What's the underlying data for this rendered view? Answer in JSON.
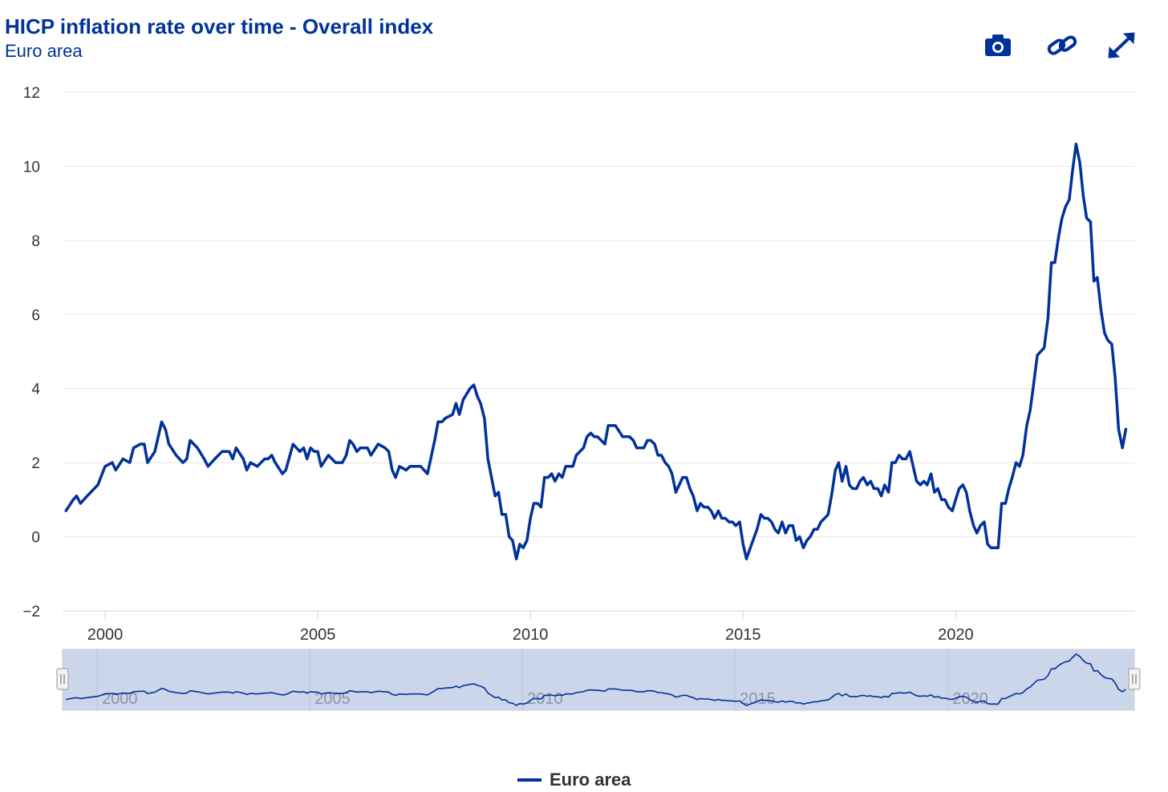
{
  "header": {
    "title": "HICP inflation rate over time - Overall index",
    "subtitle": "Euro area"
  },
  "toolbar": {
    "download_icon": "camera-icon",
    "share_icon": "link-icon",
    "fullscreen_icon": "expand-icon"
  },
  "colors": {
    "series": "#003299",
    "navigator_fill": "#ccd6eb",
    "grid": "#e6e6e6"
  },
  "chart_data": {
    "type": "line",
    "title": "HICP inflation rate over time - Overall index",
    "subtitle": "Euro area",
    "xlabel": "",
    "ylabel": "",
    "xlim": [
      1999.0,
      2024.2
    ],
    "ylim": [
      -2,
      12
    ],
    "yticks": [
      -2,
      0,
      2,
      4,
      6,
      8,
      10,
      12
    ],
    "xticks": [
      2000,
      2005,
      2010,
      2015,
      2020
    ],
    "grid": true,
    "legend_position": "bottom-center",
    "navigator": true,
    "series": [
      {
        "name": "Euro area",
        "points": [
          [
            1999.08,
            0.7
          ],
          [
            1999.25,
            1.0
          ],
          [
            1999.33,
            1.1
          ],
          [
            1999.42,
            0.9
          ],
          [
            1999.58,
            1.1
          ],
          [
            1999.83,
            1.4
          ],
          [
            2000.0,
            1.9
          ],
          [
            2000.17,
            2.0
          ],
          [
            2000.25,
            1.8
          ],
          [
            2000.42,
            2.1
          ],
          [
            2000.58,
            2.0
          ],
          [
            2000.67,
            2.4
          ],
          [
            2000.83,
            2.5
          ],
          [
            2000.92,
            2.5
          ],
          [
            2001.0,
            2.0
          ],
          [
            2001.17,
            2.3
          ],
          [
            2001.33,
            3.1
          ],
          [
            2001.42,
            2.9
          ],
          [
            2001.5,
            2.5
          ],
          [
            2001.67,
            2.2
          ],
          [
            2001.83,
            2.0
          ],
          [
            2001.92,
            2.1
          ],
          [
            2002.0,
            2.6
          ],
          [
            2002.17,
            2.4
          ],
          [
            2002.33,
            2.1
          ],
          [
            2002.42,
            1.9
          ],
          [
            2002.58,
            2.1
          ],
          [
            2002.75,
            2.3
          ],
          [
            2002.92,
            2.3
          ],
          [
            2003.0,
            2.1
          ],
          [
            2003.08,
            2.4
          ],
          [
            2003.25,
            2.1
          ],
          [
            2003.33,
            1.8
          ],
          [
            2003.42,
            2.0
          ],
          [
            2003.58,
            1.9
          ],
          [
            2003.75,
            2.1
          ],
          [
            2003.83,
            2.1
          ],
          [
            2003.92,
            2.2
          ],
          [
            2004.0,
            2.0
          ],
          [
            2004.17,
            1.7
          ],
          [
            2004.25,
            1.8
          ],
          [
            2004.42,
            2.5
          ],
          [
            2004.58,
            2.3
          ],
          [
            2004.67,
            2.4
          ],
          [
            2004.75,
            2.1
          ],
          [
            2004.83,
            2.4
          ],
          [
            2004.92,
            2.3
          ],
          [
            2005.0,
            2.3
          ],
          [
            2005.08,
            1.9
          ],
          [
            2005.25,
            2.2
          ],
          [
            2005.42,
            2.0
          ],
          [
            2005.58,
            2.0
          ],
          [
            2005.67,
            2.2
          ],
          [
            2005.75,
            2.6
          ],
          [
            2005.83,
            2.5
          ],
          [
            2005.92,
            2.3
          ],
          [
            2006.0,
            2.4
          ],
          [
            2006.17,
            2.4
          ],
          [
            2006.25,
            2.2
          ],
          [
            2006.42,
            2.5
          ],
          [
            2006.58,
            2.4
          ],
          [
            2006.67,
            2.3
          ],
          [
            2006.75,
            1.8
          ],
          [
            2006.83,
            1.6
          ],
          [
            2006.92,
            1.9
          ],
          [
            2007.08,
            1.8
          ],
          [
            2007.17,
            1.9
          ],
          [
            2007.42,
            1.9
          ],
          [
            2007.58,
            1.7
          ],
          [
            2007.75,
            2.6
          ],
          [
            2007.83,
            3.1
          ],
          [
            2007.92,
            3.1
          ],
          [
            2008.0,
            3.2
          ],
          [
            2008.17,
            3.3
          ],
          [
            2008.25,
            3.6
          ],
          [
            2008.33,
            3.3
          ],
          [
            2008.42,
            3.7
          ],
          [
            2008.58,
            4.0
          ],
          [
            2008.67,
            4.1
          ],
          [
            2008.75,
            3.8
          ],
          [
            2008.83,
            3.6
          ],
          [
            2008.92,
            3.2
          ],
          [
            2009.0,
            2.1
          ],
          [
            2009.17,
            1.1
          ],
          [
            2009.25,
            1.2
          ],
          [
            2009.33,
            0.6
          ],
          [
            2009.42,
            0.6
          ],
          [
            2009.5,
            0.0
          ],
          [
            2009.58,
            -0.1
          ],
          [
            2009.67,
            -0.6
          ],
          [
            2009.75,
            -0.2
          ],
          [
            2009.83,
            -0.3
          ],
          [
            2009.92,
            -0.1
          ],
          [
            2010.0,
            0.5
          ],
          [
            2010.08,
            0.9
          ],
          [
            2010.17,
            0.9
          ],
          [
            2010.25,
            0.8
          ],
          [
            2010.33,
            1.6
          ],
          [
            2010.42,
            1.6
          ],
          [
            2010.5,
            1.7
          ],
          [
            2010.58,
            1.5
          ],
          [
            2010.67,
            1.7
          ],
          [
            2010.75,
            1.6
          ],
          [
            2010.83,
            1.9
          ],
          [
            2010.92,
            1.9
          ],
          [
            2011.0,
            1.9
          ],
          [
            2011.08,
            2.2
          ],
          [
            2011.25,
            2.4
          ],
          [
            2011.33,
            2.7
          ],
          [
            2011.42,
            2.8
          ],
          [
            2011.5,
            2.7
          ],
          [
            2011.58,
            2.7
          ],
          [
            2011.75,
            2.5
          ],
          [
            2011.83,
            3.0
          ],
          [
            2012.0,
            3.0
          ],
          [
            2012.17,
            2.7
          ],
          [
            2012.33,
            2.7
          ],
          [
            2012.42,
            2.6
          ],
          [
            2012.5,
            2.4
          ],
          [
            2012.67,
            2.4
          ],
          [
            2012.75,
            2.6
          ],
          [
            2012.83,
            2.6
          ],
          [
            2012.92,
            2.5
          ],
          [
            2013.0,
            2.2
          ],
          [
            2013.08,
            2.2
          ],
          [
            2013.17,
            2.0
          ],
          [
            2013.25,
            1.9
          ],
          [
            2013.33,
            1.7
          ],
          [
            2013.42,
            1.2
          ],
          [
            2013.5,
            1.4
          ],
          [
            2013.58,
            1.6
          ],
          [
            2013.67,
            1.6
          ],
          [
            2013.75,
            1.3
          ],
          [
            2013.83,
            1.1
          ],
          [
            2013.92,
            0.7
          ],
          [
            2014.0,
            0.9
          ],
          [
            2014.08,
            0.8
          ],
          [
            2014.17,
            0.8
          ],
          [
            2014.25,
            0.7
          ],
          [
            2014.33,
            0.5
          ],
          [
            2014.42,
            0.7
          ],
          [
            2014.5,
            0.5
          ],
          [
            2014.58,
            0.5
          ],
          [
            2014.67,
            0.4
          ],
          [
            2014.75,
            0.4
          ],
          [
            2014.83,
            0.3
          ],
          [
            2014.92,
            0.4
          ],
          [
            2015.0,
            -0.2
          ],
          [
            2015.08,
            -0.6
          ],
          [
            2015.17,
            -0.3
          ],
          [
            2015.33,
            0.2
          ],
          [
            2015.42,
            0.6
          ],
          [
            2015.5,
            0.5
          ],
          [
            2015.58,
            0.5
          ],
          [
            2015.67,
            0.4
          ],
          [
            2015.75,
            0.2
          ],
          [
            2015.83,
            0.1
          ],
          [
            2015.92,
            0.4
          ],
          [
            2016.0,
            0.1
          ],
          [
            2016.08,
            0.3
          ],
          [
            2016.17,
            0.3
          ],
          [
            2016.25,
            -0.1
          ],
          [
            2016.33,
            0.0
          ],
          [
            2016.42,
            -0.3
          ],
          [
            2016.5,
            -0.1
          ],
          [
            2016.58,
            0.0
          ],
          [
            2016.67,
            0.2
          ],
          [
            2016.75,
            0.2
          ],
          [
            2016.83,
            0.4
          ],
          [
            2016.92,
            0.5
          ],
          [
            2017.0,
            0.6
          ],
          [
            2017.08,
            1.1
          ],
          [
            2017.17,
            1.8
          ],
          [
            2017.25,
            2.0
          ],
          [
            2017.33,
            1.5
          ],
          [
            2017.42,
            1.9
          ],
          [
            2017.5,
            1.4
          ],
          [
            2017.58,
            1.3
          ],
          [
            2017.67,
            1.3
          ],
          [
            2017.75,
            1.5
          ],
          [
            2017.83,
            1.6
          ],
          [
            2017.92,
            1.4
          ],
          [
            2018.0,
            1.5
          ],
          [
            2018.08,
            1.3
          ],
          [
            2018.17,
            1.3
          ],
          [
            2018.25,
            1.1
          ],
          [
            2018.33,
            1.4
          ],
          [
            2018.42,
            1.2
          ],
          [
            2018.5,
            2.0
          ],
          [
            2018.58,
            2.0
          ],
          [
            2018.67,
            2.2
          ],
          [
            2018.75,
            2.1
          ],
          [
            2018.83,
            2.1
          ],
          [
            2018.92,
            2.3
          ],
          [
            2019.0,
            1.9
          ],
          [
            2019.08,
            1.5
          ],
          [
            2019.17,
            1.4
          ],
          [
            2019.25,
            1.5
          ],
          [
            2019.33,
            1.4
          ],
          [
            2019.42,
            1.7
          ],
          [
            2019.5,
            1.2
          ],
          [
            2019.58,
            1.3
          ],
          [
            2019.67,
            1.0
          ],
          [
            2019.75,
            1.0
          ],
          [
            2019.83,
            0.8
          ],
          [
            2019.92,
            0.7
          ],
          [
            2020.0,
            1.0
          ],
          [
            2020.08,
            1.3
          ],
          [
            2020.17,
            1.4
          ],
          [
            2020.25,
            1.2
          ],
          [
            2020.33,
            0.7
          ],
          [
            2020.42,
            0.3
          ],
          [
            2020.5,
            0.1
          ],
          [
            2020.58,
            0.3
          ],
          [
            2020.67,
            0.4
          ],
          [
            2020.75,
            -0.2
          ],
          [
            2020.83,
            -0.3
          ],
          [
            2021.0,
            -0.3
          ],
          [
            2021.08,
            0.9
          ],
          [
            2021.17,
            0.9
          ],
          [
            2021.25,
            1.3
          ],
          [
            2021.33,
            1.6
          ],
          [
            2021.42,
            2.0
          ],
          [
            2021.5,
            1.9
          ],
          [
            2021.58,
            2.2
          ],
          [
            2021.67,
            3.0
          ],
          [
            2021.75,
            3.4
          ],
          [
            2021.83,
            4.1
          ],
          [
            2021.92,
            4.9
          ],
          [
            2022.0,
            5.0
          ],
          [
            2022.08,
            5.1
          ],
          [
            2022.17,
            5.9
          ],
          [
            2022.25,
            7.4
          ],
          [
            2022.33,
            7.4
          ],
          [
            2022.42,
            8.1
          ],
          [
            2022.5,
            8.6
          ],
          [
            2022.58,
            8.9
          ],
          [
            2022.67,
            9.1
          ],
          [
            2022.75,
            9.9
          ],
          [
            2022.83,
            10.6
          ],
          [
            2022.92,
            10.1
          ],
          [
            2023.0,
            9.2
          ],
          [
            2023.08,
            8.6
          ],
          [
            2023.17,
            8.5
          ],
          [
            2023.25,
            6.9
          ],
          [
            2023.33,
            7.0
          ],
          [
            2023.42,
            6.1
          ],
          [
            2023.5,
            5.5
          ],
          [
            2023.58,
            5.3
          ],
          [
            2023.67,
            5.2
          ],
          [
            2023.75,
            4.3
          ],
          [
            2023.83,
            2.9
          ],
          [
            2023.92,
            2.4
          ],
          [
            2024.0,
            2.9
          ]
        ]
      }
    ]
  }
}
